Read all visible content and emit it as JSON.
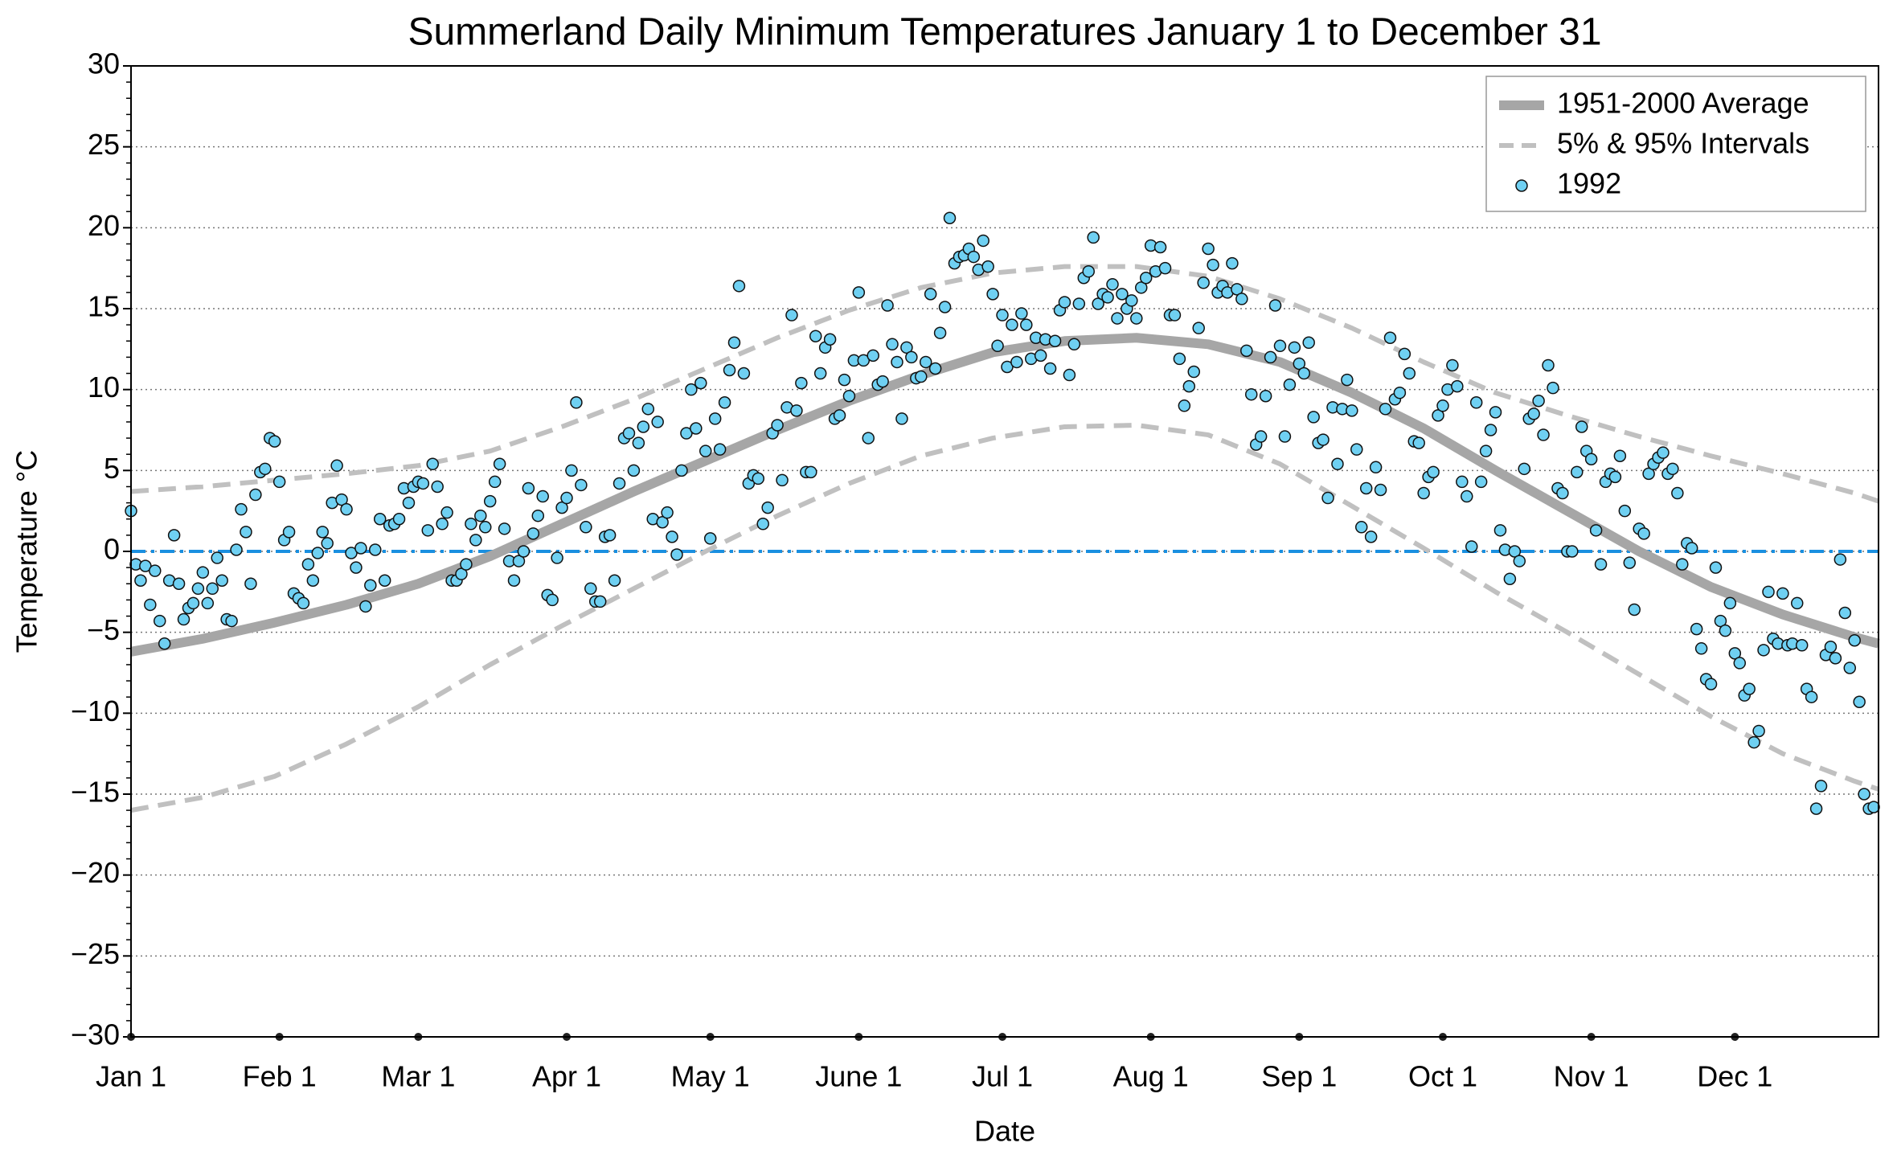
{
  "chart_data": {
    "type": "line",
    "title": "Summerland Daily Minimum Temperatures January 1 to December 31",
    "x_label": "Date",
    "y_label": "Temperature °C",
    "xlim": [
      0,
      365
    ],
    "ylim": [
      -30,
      30
    ],
    "xticks": [
      {
        "value": 0,
        "label": "Jan 1"
      },
      {
        "value": 31,
        "label": "Feb 1"
      },
      {
        "value": 60,
        "label": "Mar 1"
      },
      {
        "value": 91,
        "label": "Apr 1"
      },
      {
        "value": 121,
        "label": "May 1"
      },
      {
        "value": 152,
        "label": "June 1"
      },
      {
        "value": 182,
        "label": "Jul 1"
      },
      {
        "value": 213,
        "label": "Aug 1"
      },
      {
        "value": 244,
        "label": "Sep 1"
      },
      {
        "value": 274,
        "label": "Oct 1"
      },
      {
        "value": 305,
        "label": "Nov 1"
      },
      {
        "value": 335,
        "label": "Dec 1"
      }
    ],
    "yticks": [
      {
        "value": -30,
        "label": "−30"
      },
      {
        "value": -25,
        "label": "−25"
      },
      {
        "value": -20,
        "label": "−20"
      },
      {
        "value": -15,
        "label": "−15"
      },
      {
        "value": -10,
        "label": "−10"
      },
      {
        "value": -5,
        "label": "−5"
      },
      0,
      5,
      10,
      15,
      20,
      25,
      30
    ],
    "grid": true,
    "legend": "upper right",
    "reference_line": {
      "value": 0,
      "color": "#1a8fe0"
    },
    "series": [
      {
        "name": "1951-2000 Average",
        "kind": "line",
        "color": "#a6a6a6",
        "x": [
          0,
          15,
          30,
          45,
          60,
          75,
          90,
          105,
          120,
          135,
          150,
          165,
          180,
          195,
          210,
          225,
          240,
          255,
          270,
          285,
          300,
          315,
          330,
          345,
          360,
          365
        ],
        "values": [
          -6.2,
          -5.4,
          -4.4,
          -3.3,
          -2.0,
          -0.3,
          1.7,
          3.7,
          5.6,
          7.5,
          9.3,
          10.9,
          12.3,
          13.0,
          13.2,
          12.8,
          11.7,
          9.8,
          7.6,
          5.0,
          2.5,
          0.0,
          -2.2,
          -3.9,
          -5.3,
          -5.7
        ]
      },
      {
        "name": "5% & 95% Intervals",
        "kind": "dashed",
        "color": "#c0c0c0",
        "x": [
          0,
          15,
          30,
          45,
          60,
          75,
          90,
          105,
          120,
          135,
          150,
          165,
          180,
          195,
          210,
          225,
          240,
          255,
          270,
          285,
          300,
          315,
          330,
          345,
          360,
          365
        ],
        "values": [
          3.7,
          4.0,
          4.4,
          4.8,
          5.3,
          6.2,
          7.7,
          9.4,
          11.3,
          13.2,
          14.9,
          16.3,
          17.2,
          17.6,
          17.6,
          17.0,
          15.6,
          13.8,
          11.7,
          9.8,
          8.4,
          7.1,
          5.9,
          4.8,
          3.6,
          3.1
        ],
        "lower": [
          -16.0,
          -15.2,
          -13.9,
          -11.9,
          -9.6,
          -7.0,
          -4.6,
          -2.3,
          0.0,
          2.2,
          4.2,
          5.9,
          7.0,
          7.7,
          7.8,
          7.2,
          5.4,
          2.8,
          0.2,
          -2.5,
          -5.0,
          -7.6,
          -10.2,
          -12.5,
          -14.2,
          -14.7
        ]
      },
      {
        "name": "1992",
        "kind": "scatter",
        "color": "#6fd0f2",
        "x": [
          0,
          1,
          2,
          3,
          4,
          5,
          6,
          7,
          8,
          9,
          10,
          11,
          12,
          13,
          14,
          15,
          16,
          17,
          18,
          19,
          20,
          21,
          22,
          23,
          24,
          25,
          26,
          27,
          28,
          29,
          30,
          31,
          32,
          33,
          34,
          35,
          36,
          37,
          38,
          39,
          40,
          41,
          42,
          43,
          44,
          45,
          46,
          47,
          48,
          49,
          50,
          51,
          52,
          53,
          54,
          55,
          56,
          57,
          58,
          59,
          60,
          61,
          62,
          63,
          64,
          65,
          66,
          67,
          68,
          69,
          70,
          71,
          72,
          73,
          74,
          75,
          76,
          77,
          78,
          79,
          80,
          81,
          82,
          83,
          84,
          85,
          86,
          87,
          88,
          89,
          90,
          91,
          92,
          93,
          94,
          95,
          96,
          97,
          98,
          99,
          100,
          101,
          102,
          103,
          104,
          105,
          106,
          107,
          108,
          109,
          110,
          111,
          112,
          113,
          114,
          115,
          116,
          117,
          118,
          119,
          120,
          121,
          122,
          123,
          124,
          125,
          126,
          127,
          128,
          129,
          130,
          131,
          132,
          133,
          134,
          135,
          136,
          137,
          138,
          139,
          140,
          141,
          142,
          143,
          144,
          145,
          146,
          147,
          148,
          149,
          150,
          151,
          152,
          153,
          154,
          155,
          156,
          157,
          158,
          159,
          160,
          161,
          162,
          163,
          164,
          165,
          166,
          167,
          168,
          169,
          170,
          171,
          172,
          173,
          174,
          175,
          176,
          177,
          178,
          179,
          180,
          181,
          182,
          183,
          184,
          185,
          186,
          187,
          188,
          189,
          190,
          191,
          192,
          193,
          194,
          195,
          196,
          197,
          198,
          199,
          200,
          201,
          202,
          203,
          204,
          205,
          206,
          207,
          208,
          209,
          210,
          211,
          212,
          213,
          214,
          215,
          216,
          217,
          218,
          219,
          220,
          221,
          222,
          223,
          224,
          225,
          226,
          227,
          228,
          229,
          230,
          231,
          232,
          233,
          234,
          235,
          236,
          237,
          238,
          239,
          240,
          241,
          242,
          243,
          244,
          245,
          246,
          247,
          248,
          249,
          250,
          251,
          252,
          253,
          254,
          255,
          256,
          257,
          258,
          259,
          260,
          261,
          262,
          263,
          264,
          265,
          266,
          267,
          268,
          269,
          270,
          271,
          272,
          273,
          274,
          275,
          276,
          277,
          278,
          279,
          280,
          281,
          282,
          283,
          284,
          285,
          286,
          287,
          288,
          289,
          290,
          291,
          292,
          293,
          294,
          295,
          296,
          297,
          298,
          299,
          300,
          301,
          302,
          303,
          304,
          305,
          306,
          307,
          308,
          309,
          310,
          311,
          312,
          313,
          314,
          315,
          316,
          317,
          318,
          319,
          320,
          321,
          322,
          323,
          324,
          325,
          326,
          327,
          328,
          329,
          330,
          331,
          332,
          333,
          334,
          335,
          336,
          337,
          338,
          339,
          340,
          341,
          342,
          343,
          344,
          345,
          346,
          347,
          348,
          349,
          350,
          351,
          352,
          353,
          354,
          355,
          356,
          357,
          358,
          359,
          360,
          361,
          362,
          363,
          364
        ],
        "values": [
          2.5,
          -0.8,
          -1.8,
          -0.9,
          -3.3,
          -1.2,
          -4.3,
          -5.7,
          -1.8,
          1.0,
          -2.0,
          -4.2,
          -3.5,
          -3.2,
          -2.3,
          -1.3,
          -3.2,
          -2.3,
          -0.4,
          -1.8,
          -4.2,
          -4.3,
          0.1,
          2.6,
          1.2,
          -2.0,
          3.5,
          4.9,
          5.1,
          7.0,
          6.8,
          4.3,
          0.7,
          1.2,
          -2.6,
          -2.9,
          -3.2,
          -0.8,
          -1.8,
          -0.1,
          1.2,
          0.5,
          3.0,
          5.3,
          3.2,
          2.6,
          -0.1,
          -1.0,
          0.2,
          -3.4,
          -2.1,
          0.1,
          2.0,
          -1.8,
          1.6,
          1.7,
          2.0,
          3.9,
          3.0,
          4.0,
          4.3,
          4.2,
          1.3,
          5.4,
          4.0,
          1.7,
          2.4,
          -1.8,
          -1.8,
          -1.4,
          -0.8,
          1.7,
          0.7,
          2.2,
          1.5,
          3.1,
          4.3,
          5.4,
          1.4,
          -0.6,
          -1.8,
          -0.6,
          0.0,
          3.9,
          1.1,
          2.2,
          3.4,
          -2.7,
          -3.0,
          -0.4,
          2.7,
          3.3,
          5.0,
          9.2,
          4.1,
          1.5,
          -2.3,
          -3.1,
          -3.1,
          0.9,
          1.0,
          -1.8,
          4.2,
          7.0,
          7.3,
          5.0,
          6.7,
          7.7,
          8.8,
          2.0,
          8.0,
          1.8,
          2.4,
          0.9,
          -0.2,
          5.0,
          7.3,
          10.0,
          7.6,
          10.4,
          6.2,
          0.8,
          8.2,
          6.3,
          9.2,
          11.2,
          12.9,
          16.4,
          11.0,
          4.2,
          4.7,
          4.5,
          1.7,
          2.7,
          7.3,
          7.8,
          4.4,
          8.9,
          14.6,
          8.7,
          10.4,
          4.9,
          4.9,
          13.3,
          11.0,
          12.6,
          13.1,
          8.2,
          8.4,
          10.6,
          9.6,
          11.8,
          16.0,
          11.8,
          7.0,
          12.1,
          10.3,
          10.5,
          15.2,
          12.8,
          11.7,
          8.2,
          12.6,
          12.0,
          10.7,
          10.8,
          11.7,
          15.9,
          11.3,
          13.5,
          15.1,
          20.6,
          17.8,
          18.2,
          18.3,
          18.7,
          18.2,
          17.4,
          19.2,
          17.6,
          15.9,
          12.7,
          14.6,
          11.4,
          14.0,
          11.7,
          14.7,
          14.0,
          11.9,
          13.2,
          12.1,
          13.1,
          11.3,
          13.0,
          14.9,
          15.4,
          10.9,
          12.8,
          15.3,
          16.9,
          17.3,
          19.4,
          15.3,
          15.9,
          15.7,
          16.5,
          14.4,
          15.9,
          15.0,
          15.5,
          14.4,
          16.3,
          16.9,
          18.9,
          17.3,
          18.8,
          17.5,
          14.6,
          14.6,
          11.9,
          9.0,
          10.2,
          11.1,
          13.8,
          16.6,
          18.7,
          17.7,
          16.0,
          16.4,
          16.0,
          17.8,
          16.2,
          15.6,
          12.4,
          9.7,
          6.6,
          7.1,
          9.6,
          12.0,
          15.2,
          12.7,
          7.1,
          10.3,
          12.6,
          11.6,
          11.0,
          12.9,
          8.3,
          6.7,
          6.9,
          3.3,
          8.9,
          5.4,
          8.8,
          10.6,
          8.7,
          6.3,
          1.5,
          3.9,
          0.9,
          5.2,
          3.8,
          8.8,
          13.2,
          9.4,
          9.8,
          12.2,
          11.0,
          6.8,
          6.7,
          3.6,
          4.6,
          4.9,
          8.4,
          9.0,
          10.0,
          11.5,
          10.2,
          4.3,
          3.4,
          0.3,
          9.2,
          4.3,
          6.2,
          7.5,
          8.6,
          1.3,
          0.1,
          -1.7,
          0.0,
          -0.6,
          5.1,
          8.2,
          8.5,
          9.3,
          7.2,
          11.5,
          10.1,
          3.9,
          3.6,
          0.0,
          0.0,
          4.9,
          7.7,
          6.2,
          5.7,
          1.3,
          -0.8,
          4.3,
          4.8,
          4.6,
          5.9,
          2.5,
          -0.7,
          -3.6,
          1.4,
          1.1,
          4.8,
          5.4,
          5.8,
          6.1,
          4.8,
          5.1,
          3.6,
          -0.8,
          0.5,
          0.2,
          -4.8,
          -6.0,
          -7.9,
          -8.2,
          -1.0,
          -4.3,
          -4.9,
          -3.2,
          -6.3,
          -6.9,
          -8.9,
          -8.5,
          -11.8,
          -11.1,
          -6.1,
          -2.5,
          -5.4,
          -5.7,
          -2.6,
          -5.8,
          -5.7,
          -3.2,
          -5.8,
          -8.5,
          -9.0,
          -15.9,
          -14.5,
          -6.4,
          -5.9,
          -6.6,
          -0.5,
          -3.8,
          -7.2,
          -5.5,
          -9.3,
          -15.0,
          -15.9,
          -15.8
        ]
      }
    ]
  }
}
